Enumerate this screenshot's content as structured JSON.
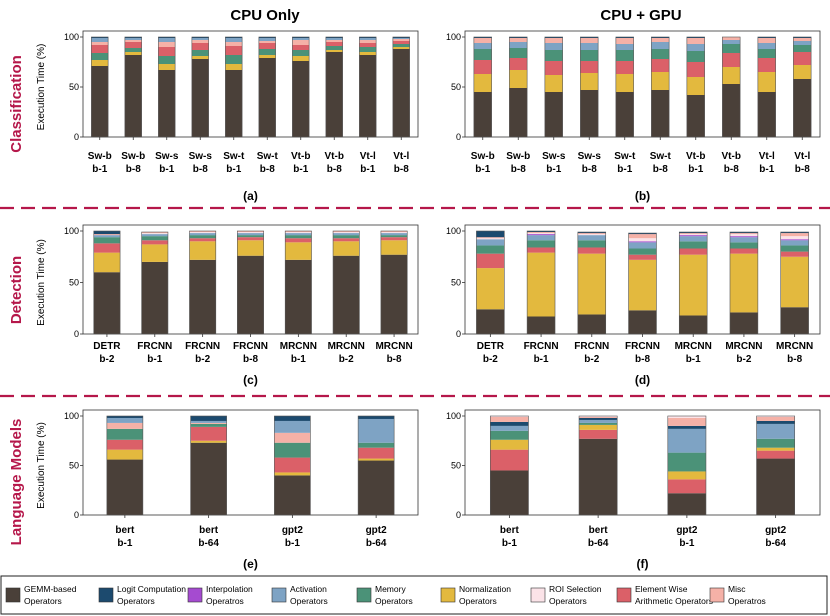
{
  "figure": {
    "column_titles": [
      "CPU Only",
      "CPU + GPU"
    ],
    "row_labels": [
      "Classification",
      "Detection",
      "Language Models"
    ],
    "ylabel": "Execution Time (%)",
    "row_color": "#b5174a"
  },
  "legend": [
    {
      "key": "gemm",
      "line1": "GEMM-based",
      "line2": "Operators",
      "color": "#4a4039"
    },
    {
      "key": "logit",
      "line1": "Logit Computation",
      "line2": "Operators",
      "color": "#1c4a6e"
    },
    {
      "key": "interp",
      "line1": "Interpolation",
      "line2": "Operatros",
      "color": "#a54bd0"
    },
    {
      "key": "act",
      "line1": "Activation",
      "line2": "Operators",
      "color": "#7ea3c4"
    },
    {
      "key": "mem",
      "line1": "Memory",
      "line2": "Operators",
      "color": "#4b9278"
    },
    {
      "key": "norm",
      "line1": "Normalization",
      "line2": "Operators",
      "color": "#e3b93e"
    },
    {
      "key": "roi",
      "line1": "ROI Selection",
      "line2": "Operators",
      "color": "#fbe3e8"
    },
    {
      "key": "elem",
      "line1": "Element Wise",
      "line2": "Arithmetic Operators",
      "color": "#db6068"
    },
    {
      "key": "misc",
      "line1": "Misc",
      "line2": "Operatros",
      "color": "#f5b1a7"
    }
  ],
  "chart_data": [
    {
      "panel": "(a)",
      "type": "stacked_bar",
      "title": "CPU Only",
      "row": "Classification",
      "ylabel": "Execution Time (%)",
      "ylim": [
        0,
        100
      ],
      "yticks": [
        0,
        50,
        100
      ],
      "categories": [
        [
          "Sw-b",
          "b-1"
        ],
        [
          "Sw-b",
          "b-8"
        ],
        [
          "Sw-s",
          "b-1"
        ],
        [
          "Sw-s",
          "b-8"
        ],
        [
          "Sw-t",
          "b-1"
        ],
        [
          "Sw-t",
          "b-8"
        ],
        [
          "Vt-b",
          "b-1"
        ],
        [
          "Vt-b",
          "b-8"
        ],
        [
          "Vt-l",
          "b-1"
        ],
        [
          "Vt-l",
          "b-8"
        ]
      ],
      "series": [
        {
          "name": "GEMM-based Operators",
          "key": "gemm",
          "values": [
            71,
            82,
            67,
            78,
            67,
            79,
            76,
            85,
            82,
            88
          ]
        },
        {
          "name": "Normalization Operators",
          "key": "norm",
          "values": [
            6,
            3,
            6,
            3,
            6,
            3,
            5,
            2,
            3,
            2
          ]
        },
        {
          "name": "Memory Operators",
          "key": "mem",
          "values": [
            7,
            4,
            8,
            6,
            9,
            6,
            6,
            4,
            5,
            3
          ]
        },
        {
          "name": "Element Wise Arithmetic Operators",
          "key": "elem",
          "values": [
            8,
            6,
            9,
            7,
            9,
            6,
            5,
            4,
            4,
            3
          ]
        },
        {
          "name": "Misc Operatros",
          "key": "misc",
          "values": [
            3,
            2,
            5,
            3,
            4,
            2,
            5,
            2,
            3,
            2
          ]
        },
        {
          "name": "Activation Operators",
          "key": "act",
          "values": [
            4,
            2,
            4,
            2,
            4,
            3,
            2,
            2,
            2,
            1
          ]
        },
        {
          "name": "Logit Computation Operators",
          "key": "logit",
          "values": [
            1,
            1,
            1,
            1,
            1,
            1,
            1,
            1,
            1,
            1
          ]
        }
      ]
    },
    {
      "panel": "(b)",
      "type": "stacked_bar",
      "title": "CPU + GPU",
      "row": "Classification",
      "ylabel": "Execution Time (%)",
      "ylim": [
        0,
        100
      ],
      "yticks": [
        0,
        50,
        100
      ],
      "categories": [
        [
          "Sw-b",
          "b-1"
        ],
        [
          "Sw-b",
          "b-8"
        ],
        [
          "Sw-s",
          "b-1"
        ],
        [
          "Sw-s",
          "b-8"
        ],
        [
          "Sw-t",
          "b-1"
        ],
        [
          "Sw-t",
          "b-8"
        ],
        [
          "Vt-b",
          "b-1"
        ],
        [
          "Vt-b",
          "b-8"
        ],
        [
          "Vt-l",
          "b-1"
        ],
        [
          "Vt-l",
          "b-8"
        ]
      ],
      "series": [
        {
          "name": "GEMM-based Operators",
          "key": "gemm",
          "values": [
            45,
            49,
            45,
            47,
            45,
            47,
            42,
            53,
            45,
            58
          ]
        },
        {
          "name": "Normalization Operators",
          "key": "norm",
          "values": [
            18,
            18,
            17,
            17,
            18,
            18,
            18,
            17,
            20,
            14
          ]
        },
        {
          "name": "Element Wise Arithmetic Operators",
          "key": "elem",
          "values": [
            14,
            12,
            14,
            12,
            13,
            13,
            15,
            14,
            14,
            13
          ]
        },
        {
          "name": "Memory Operators",
          "key": "mem",
          "values": [
            11,
            10,
            11,
            11,
            11,
            10,
            11,
            9,
            9,
            7
          ]
        },
        {
          "name": "Activation Operators",
          "key": "act",
          "values": [
            6,
            6,
            7,
            7,
            6,
            7,
            7,
            4,
            6,
            4
          ]
        },
        {
          "name": "Misc Operatros",
          "key": "misc",
          "values": [
            5,
            4,
            5,
            5,
            6,
            4,
            6,
            3,
            5,
            3
          ]
        },
        {
          "name": "Logit Computation Operators",
          "key": "logit",
          "values": [
            1,
            1,
            1,
            1,
            1,
            1,
            1,
            0,
            1,
            1
          ]
        }
      ]
    },
    {
      "panel": "(c)",
      "type": "stacked_bar",
      "title": "CPU Only",
      "row": "Detection",
      "ylabel": "Execution Time (%)",
      "ylim": [
        0,
        100
      ],
      "yticks": [
        0,
        50,
        100
      ],
      "categories": [
        [
          "DETR",
          "b-2"
        ],
        [
          "FRCNN",
          "b-1"
        ],
        [
          "FRCNN",
          "b-2"
        ],
        [
          "FRCNN",
          "b-8"
        ],
        [
          "MRCNN",
          "b-1"
        ],
        [
          "MRCNN",
          "b-2"
        ],
        [
          "MRCNN",
          "b-8"
        ]
      ],
      "series": [
        {
          "name": "GEMM-based Operators",
          "key": "gemm",
          "values": [
            60,
            70,
            72,
            76,
            72,
            76,
            77
          ]
        },
        {
          "name": "Normalization Operators",
          "key": "norm",
          "values": [
            19,
            17,
            18,
            15,
            17,
            14,
            14
          ]
        },
        {
          "name": "Element Wise Arithmetic Operators",
          "key": "elem",
          "values": [
            9,
            4,
            3,
            3,
            4,
            3,
            3
          ]
        },
        {
          "name": "Memory Operators",
          "key": "mem",
          "values": [
            6,
            4,
            3,
            2,
            3,
            3,
            2
          ]
        },
        {
          "name": "Activation Operators",
          "key": "act",
          "values": [
            2,
            2,
            2,
            2,
            2,
            2,
            2
          ]
        },
        {
          "name": "ROI Selection Operators",
          "key": "roi",
          "values": [
            0,
            1,
            1,
            1,
            1,
            1,
            1
          ]
        },
        {
          "name": "Misc Operatros",
          "key": "misc",
          "values": [
            1,
            1,
            1,
            1,
            1,
            1,
            1
          ]
        },
        {
          "name": "Logit Computation Operators",
          "key": "logit",
          "values": [
            3,
            0,
            0,
            0,
            0,
            0,
            0
          ]
        }
      ]
    },
    {
      "panel": "(d)",
      "type": "stacked_bar",
      "title": "CPU + GPU",
      "row": "Detection",
      "ylabel": "Execution Time (%)",
      "ylim": [
        0,
        100
      ],
      "yticks": [
        0,
        50,
        100
      ],
      "categories": [
        [
          "DETR",
          "b-2"
        ],
        [
          "FRCNN",
          "b-1"
        ],
        [
          "FRCNN",
          "b-2"
        ],
        [
          "FRCNN",
          "b-8"
        ],
        [
          "MRCNN",
          "b-1"
        ],
        [
          "MRCNN",
          "b-2"
        ],
        [
          "MRCNN",
          "b-8"
        ]
      ],
      "series": [
        {
          "name": "GEMM-based Operators",
          "key": "gemm",
          "values": [
            24,
            17,
            19,
            23,
            18,
            21,
            26
          ]
        },
        {
          "name": "Normalization Operators",
          "key": "norm",
          "values": [
            40,
            62,
            59,
            49,
            59,
            57,
            49
          ]
        },
        {
          "name": "Element Wise Arithmetic Operators",
          "key": "elem",
          "values": [
            14,
            5,
            6,
            5,
            6,
            5,
            5
          ]
        },
        {
          "name": "Memory Operators",
          "key": "mem",
          "values": [
            8,
            7,
            7,
            6,
            7,
            6,
            6
          ]
        },
        {
          "name": "Activation Operators",
          "key": "act",
          "values": [
            6,
            5,
            5,
            6,
            5,
            5,
            5
          ]
        },
        {
          "name": "Interpolation Operatros",
          "key": "interp",
          "values": [
            0,
            1,
            0,
            1,
            1,
            1,
            1
          ]
        },
        {
          "name": "ROI Selection Operators",
          "key": "roi",
          "values": [
            1,
            1,
            1,
            3,
            1,
            2,
            3
          ]
        },
        {
          "name": "Misc Operatros",
          "key": "misc",
          "values": [
            1,
            1,
            1,
            4,
            1,
            1,
            3
          ]
        },
        {
          "name": "Logit Computation Operators",
          "key": "logit",
          "values": [
            6,
            1,
            1,
            1,
            1,
            1,
            1
          ]
        }
      ]
    },
    {
      "panel": "(e)",
      "type": "stacked_bar",
      "title": "CPU Only",
      "row": "Language Models",
      "ylabel": "Execution Time (%)",
      "ylim": [
        0,
        100
      ],
      "yticks": [
        0,
        50,
        100
      ],
      "categories": [
        [
          "bert",
          "b-1"
        ],
        [
          "bert",
          "b-64"
        ],
        [
          "gpt2",
          "b-1"
        ],
        [
          "gpt2",
          "b-64"
        ]
      ],
      "series": [
        {
          "name": "GEMM-based Operators",
          "key": "gemm",
          "values": [
            56,
            73,
            40,
            55
          ]
        },
        {
          "name": "Normalization Operators",
          "key": "norm",
          "values": [
            10,
            2,
            3,
            2
          ]
        },
        {
          "name": "Element Wise Arithmetic Operators",
          "key": "elem",
          "values": [
            10,
            14,
            15,
            11
          ]
        },
        {
          "name": "Memory Operators",
          "key": "mem",
          "values": [
            11,
            3,
            15,
            5
          ]
        },
        {
          "name": "Misc Operatros",
          "key": "misc",
          "values": [
            6,
            1,
            10,
            0
          ]
        },
        {
          "name": "Activation Operators",
          "key": "act",
          "values": [
            5,
            2,
            12,
            24
          ]
        },
        {
          "name": "Logit Computation Operators",
          "key": "logit",
          "values": [
            2,
            5,
            5,
            3
          ]
        }
      ]
    },
    {
      "panel": "(f)",
      "type": "stacked_bar",
      "title": "CPU + GPU",
      "row": "Language Models",
      "ylabel": "Execution Time (%)",
      "ylim": [
        0,
        100
      ],
      "yticks": [
        0,
        50,
        100
      ],
      "categories": [
        [
          "bert",
          "b-1"
        ],
        [
          "bert",
          "b-64"
        ],
        [
          "gpt2",
          "b-1"
        ],
        [
          "gpt2",
          "b-64"
        ]
      ],
      "series": [
        {
          "name": "GEMM-based Operators",
          "key": "gemm",
          "values": [
            45,
            77,
            22,
            57
          ]
        },
        {
          "name": "Element Wise Arithmetic Operators",
          "key": "elem",
          "values": [
            21,
            9,
            14,
            8
          ]
        },
        {
          "name": "Normalization Operators",
          "key": "norm",
          "values": [
            10,
            5,
            8,
            3
          ]
        },
        {
          "name": "Memory Operators",
          "key": "mem",
          "values": [
            9,
            2,
            19,
            9
          ]
        },
        {
          "name": "Activation Operators",
          "key": "act",
          "values": [
            5,
            3,
            24,
            15
          ]
        },
        {
          "name": "Logit Computation Operators",
          "key": "logit",
          "values": [
            4,
            2,
            3,
            3
          ]
        },
        {
          "name": "Misc Operatros",
          "key": "misc",
          "values": [
            5,
            1,
            8,
            4
          ]
        },
        {
          "name": "ROI Selection Operators",
          "key": "roi",
          "values": [
            1,
            1,
            2,
            1
          ]
        }
      ]
    }
  ]
}
